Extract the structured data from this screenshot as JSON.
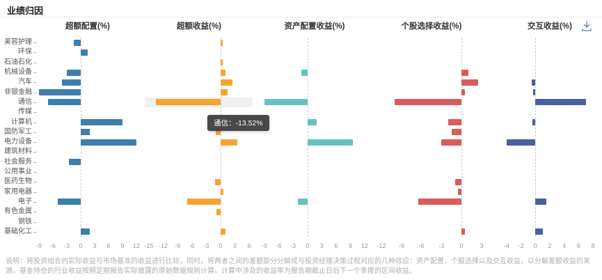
{
  "header": {
    "title": "业绩归因"
  },
  "toolbar": {
    "download_icon": "download-icon"
  },
  "tooltip": {
    "text": "通信：-13.52%"
  },
  "footer": {
    "note": "说明：将投资组合的实际收益与市场基准的收益进行比较，同时，将两者之间的差额部分分解成与投资经理决策过程对应的几种效应：资产配置、个股选择以及交互收益，以分解差额收益的来源。基金持仓的行业收益按照定期报告实际披露的原始数据规则计算。计算中涉及的收益率为报告期截止日后下一个季度的区间收益。"
  },
  "chart_data": {
    "type": "bar",
    "orientation": "horizontal",
    "grid": "zero-line-only",
    "categories": [
      "美容护理",
      "环保",
      "石油石化",
      "机械设备",
      "汽车",
      "非银金融",
      "通信",
      "传媒",
      "计算机",
      "国防军工",
      "电力设备",
      "建筑材料",
      "社会服务",
      "公用事业",
      "医药生物",
      "家用电器",
      "电子",
      "有色金属",
      "钢铁",
      "基础化工"
    ],
    "charts": [
      {
        "title": "超额配置(%)",
        "color": "#3d7eae",
        "min": -9,
        "max": 12,
        "ticks": [
          -9,
          -6,
          -3,
          0,
          3,
          6,
          9,
          12
        ],
        "values": [
          -1.5,
          1.5,
          0,
          -3,
          -4,
          -9,
          -7,
          0,
          9,
          2,
          12.5,
          0,
          -2.5,
          0,
          0,
          0,
          -5,
          0,
          0,
          2
        ]
      },
      {
        "title": "超额收益(%)",
        "color": "#f5a432",
        "min": -15,
        "max": 6,
        "ticks": [
          -15,
          -12,
          -9,
          -6,
          -3,
          0,
          3,
          6
        ],
        "values": [
          0.5,
          0,
          0.5,
          1,
          2.5,
          1.5,
          -13.52,
          0,
          1,
          -1,
          3.5,
          0,
          0,
          0,
          -1.2,
          0.6,
          -7,
          -0.8,
          0,
          1
        ],
        "highlight_category": "通信"
      },
      {
        "title": "资产配置收益(%)",
        "color": "#66c2bd",
        "min": -9,
        "max": 12,
        "ticks": [
          -9,
          -6,
          -3,
          0,
          3,
          6,
          9,
          12
        ],
        "values": [
          0,
          0,
          0,
          -1.2,
          0,
          0,
          -9.5,
          0,
          2,
          0,
          9.5,
          0,
          0,
          0,
          0,
          0,
          -2,
          0,
          0,
          0
        ]
      },
      {
        "title": "个股选择收益(%)",
        "color": "#d95c5c",
        "min": -12,
        "max": 3,
        "ticks": [
          -12,
          -9,
          -6,
          -3,
          0,
          3
        ],
        "values": [
          0,
          0,
          0,
          1,
          2.5,
          0.5,
          -10,
          0,
          -2,
          -1.5,
          -3,
          0,
          0,
          0,
          -1,
          -0.5,
          -6.5,
          0,
          0,
          0.5
        ]
      },
      {
        "title": "交互收益(%)",
        "color": "#4a5f9e",
        "min": -4,
        "max": 8,
        "ticks": [
          -4,
          -2,
          0,
          2,
          4,
          6,
          8
        ],
        "values": [
          0,
          0,
          0,
          0,
          -0.5,
          -0.3,
          7,
          0,
          -0.4,
          0,
          -4,
          0,
          0,
          0,
          0,
          0,
          1.5,
          0,
          0,
          1
        ]
      }
    ]
  }
}
